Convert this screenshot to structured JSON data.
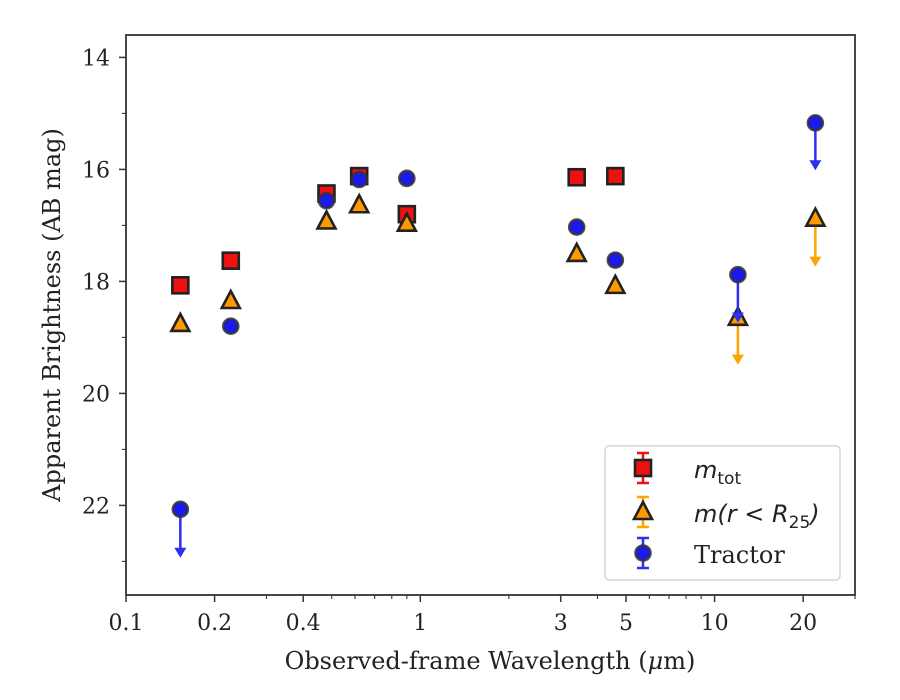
{
  "chart_data": {
    "type": "scatter",
    "xscale": "log",
    "yinverted": true,
    "xlim": [
      0.1,
      30
    ],
    "ylim": [
      13.6,
      23.6
    ],
    "xlabel_text": "Observed-frame Wavelength (",
    "xlabel_mu": "μ",
    "xlabel_unit": "m)",
    "ylabel": "Apparent Brightness (AB mag)",
    "xticks": [
      {
        "value": 0.1,
        "label": "0.1"
      },
      {
        "value": 0.2,
        "label": "0.2"
      },
      {
        "value": 0.4,
        "label": "0.4"
      },
      {
        "value": 1,
        "label": "1"
      },
      {
        "value": 3,
        "label": "3"
      },
      {
        "value": 5,
        "label": "5"
      },
      {
        "value": 10,
        "label": "10"
      },
      {
        "value": 20,
        "label": "20"
      }
    ],
    "xminor": [
      0.3,
      0.5,
      0.6,
      0.7,
      0.8,
      0.9,
      2,
      4,
      6,
      7,
      8,
      9,
      30
    ],
    "yticks": [
      14,
      16,
      18,
      20,
      22
    ],
    "yminor": [
      15,
      17,
      19,
      21,
      23
    ],
    "legend": {
      "placement": "lower-right",
      "entries": [
        {
          "key": "mtot",
          "italic": "m",
          "sub": "tot",
          "rest": ""
        },
        {
          "key": "mr",
          "italic": "m(r < R",
          "sub": "25",
          "rest": ")"
        },
        {
          "key": "tractor",
          "plain": "Tractor"
        }
      ]
    },
    "series": [
      {
        "key": "mtot",
        "marker": "square",
        "color": "#ee1111",
        "err_color": "#ee1111",
        "points": [
          {
            "x": 0.153,
            "y": 18.07
          },
          {
            "x": 0.227,
            "y": 17.63
          },
          {
            "x": 0.48,
            "y": 16.43
          },
          {
            "x": 0.62,
            "y": 16.12
          },
          {
            "x": 0.9,
            "y": 16.8
          },
          {
            "x": 3.4,
            "y": 16.14
          },
          {
            "x": 4.6,
            "y": 16.12
          }
        ]
      },
      {
        "key": "mr",
        "marker": "triangle",
        "color": "#ff9900",
        "err_color": "#ffa500",
        "points": [
          {
            "x": 0.153,
            "y": 18.76
          },
          {
            "x": 0.227,
            "y": 18.35
          },
          {
            "x": 0.48,
            "y": 16.93
          },
          {
            "x": 0.62,
            "y": 16.64
          },
          {
            "x": 0.9,
            "y": 16.97
          },
          {
            "x": 3.4,
            "y": 17.51
          },
          {
            "x": 4.6,
            "y": 18.08
          },
          {
            "x": 12.0,
            "y": 18.65,
            "upper_limit_to": 19.45
          },
          {
            "x": 22.0,
            "y": 16.88,
            "upper_limit_to": 17.7
          }
        ]
      },
      {
        "key": "tractor",
        "marker": "circle",
        "color": "#1a1aee",
        "err_color": "#2f2fee",
        "points": [
          {
            "x": 0.153,
            "y": 22.07,
            "upper_limit_to": 22.9
          },
          {
            "x": 0.227,
            "y": 18.8
          },
          {
            "x": 0.48,
            "y": 16.56
          },
          {
            "x": 0.62,
            "y": 16.18
          },
          {
            "x": 0.9,
            "y": 16.16
          },
          {
            "x": 3.4,
            "y": 17.03
          },
          {
            "x": 4.6,
            "y": 17.62
          },
          {
            "x": 12.0,
            "y": 17.88,
            "upper_limit_to": 18.7
          },
          {
            "x": 22.0,
            "y": 15.17,
            "upper_limit_to": 15.98
          }
        ]
      }
    ]
  }
}
